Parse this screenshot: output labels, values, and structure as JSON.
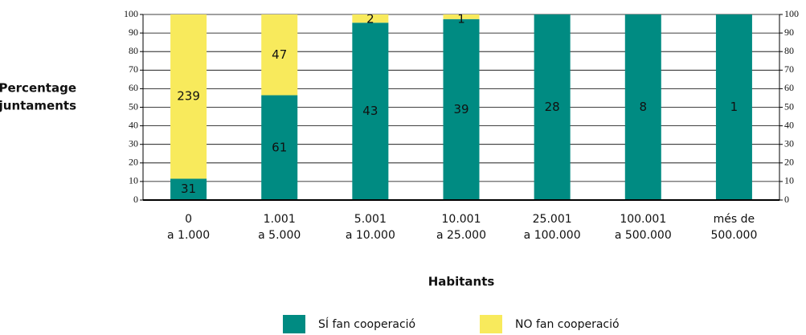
{
  "chart_data": {
    "type": "bar",
    "stacked": "percent",
    "ylabel": [
      "Percentage",
      "d’ajuntaments"
    ],
    "xlabel": "Habitants",
    "categories": [
      [
        "0",
        "a 1.000"
      ],
      [
        "1.001",
        "a 5.000"
      ],
      [
        "5.001",
        "a 10.000"
      ],
      [
        "10.001",
        "a 25.000"
      ],
      [
        "25.001",
        "a 100.000"
      ],
      [
        "100.001",
        "a 500.000"
      ],
      [
        "més de",
        "500.000"
      ]
    ],
    "series": [
      {
        "name": "SÍ fan cooperació",
        "color": "#008b82",
        "values": [
          31,
          61,
          43,
          39,
          28,
          8,
          1
        ]
      },
      {
        "name": "NO fan cooperació",
        "color": "#f8ea5c",
        "values": [
          239,
          47,
          2,
          1,
          0,
          0,
          0
        ]
      }
    ],
    "ylim": [
      0,
      100
    ],
    "yticks": [
      0,
      10,
      20,
      30,
      40,
      50,
      60,
      70,
      80,
      90,
      100
    ],
    "y2lim": [
      0,
      100
    ],
    "y2ticks": [
      0,
      10,
      20,
      30,
      40,
      50,
      60,
      70,
      80,
      90,
      100
    ],
    "grid": true
  }
}
